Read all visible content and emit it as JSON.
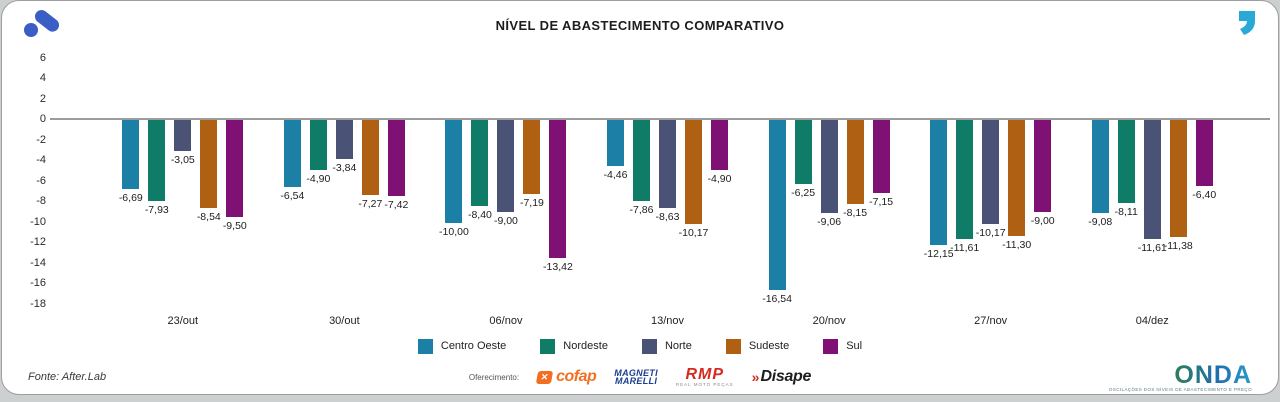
{
  "header": {
    "title": "NÍVEL DE ABASTECIMENTO COMPARATIVO",
    "brand_icon": "afterlab-mark",
    "brand_color": "#3a5ec6",
    "quote_icon": "quote-mark",
    "quote_color": "#29a9d6"
  },
  "chart_data": {
    "type": "bar",
    "title": "NÍVEL DE ABASTECIMENTO COMPARATIVO",
    "categories": [
      "23/out",
      "30/out",
      "06/nov",
      "13/nov",
      "20/nov",
      "27/nov",
      "04/dez"
    ],
    "series": [
      {
        "name": "Centro Oeste",
        "color": "#1b7fa6",
        "values": [
          -6.69,
          -6.54,
          -10.0,
          -4.46,
          -16.54,
          -12.15,
          -9.08
        ]
      },
      {
        "name": "Nordeste",
        "color": "#0e7c66",
        "values": [
          -7.93,
          -4.9,
          -8.4,
          -7.86,
          -6.25,
          -11.61,
          -8.11
        ]
      },
      {
        "name": "Norte",
        "color": "#4a5275",
        "values": [
          -3.05,
          -3.84,
          -9.0,
          -8.63,
          -9.06,
          -10.17,
          -11.61
        ]
      },
      {
        "name": "Sudeste",
        "color": "#b06012",
        "values": [
          -8.54,
          -7.27,
          -7.19,
          -10.17,
          -8.15,
          -11.3,
          -11.38
        ]
      },
      {
        "name": "Sul",
        "color": "#7e1173",
        "values": [
          -9.5,
          -7.42,
          -13.42,
          -4.9,
          -7.15,
          -9.0,
          -6.4
        ]
      }
    ],
    "ylim": [
      -18,
      6
    ],
    "y_ticks": [
      6,
      4,
      2,
      0,
      -2,
      -4,
      -6,
      -8,
      -10,
      -12,
      -14,
      -16,
      -18
    ],
    "grid": false,
    "legend_position": "bottom",
    "value_label_decimal_separator": ","
  },
  "footer": {
    "source": "Fonte: After.Lab",
    "offering_label": "Oferecimento:",
    "sponsors": {
      "cofap": {
        "name": "cofap",
        "color": "#f26f21"
      },
      "magneti": {
        "line1": "MAGNETI",
        "line2": "MARELLI",
        "color": "#1c3e8e"
      },
      "rmp": {
        "name": "RMP",
        "sub": "REAL MOTO PEÇAS",
        "color": "#d52b1e"
      },
      "disape": {
        "prefix": "»",
        "name": "Disape",
        "color": "#1d1d1b"
      }
    },
    "onda": {
      "name": "ONDA",
      "tagline": "OSCILAÇÕES DOS NÍVEIS DE ABASTECIMENTO E PREÇO"
    }
  }
}
